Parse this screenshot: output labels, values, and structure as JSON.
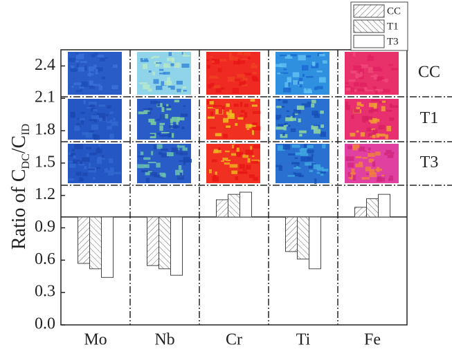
{
  "chart_data": {
    "type": "bar",
    "ylabel_parts": [
      "Ratio of C",
      "DC",
      "/C",
      "ID"
    ],
    "categories": [
      "Mo",
      "Nb",
      "Cr",
      "Ti",
      "Fe"
    ],
    "baseline": 1.0,
    "series": [
      {
        "name": "CC",
        "color": "#ffffff",
        "hatch": "/",
        "values": [
          0.57,
          0.55,
          1.16,
          0.68,
          1.09
        ]
      },
      {
        "name": "T1",
        "color": "#ffffff",
        "hatch": "\\",
        "values": [
          0.52,
          0.52,
          1.21,
          0.61,
          1.17
        ]
      },
      {
        "name": "T3",
        "color": "#ffffff",
        "hatch": "",
        "values": [
          0.44,
          0.46,
          1.23,
          0.52,
          1.21
        ]
      }
    ],
    "panel_labels": [
      "CC",
      "T1",
      "T3"
    ],
    "ylim": [
      0,
      2.55
    ],
    "yticks": [
      {
        "value": 0,
        "label": "0.0"
      },
      0.3,
      0.6,
      0.9,
      1.2,
      1.5,
      1.8,
      2.1,
      2.4
    ],
    "legend": "top-right"
  }
}
